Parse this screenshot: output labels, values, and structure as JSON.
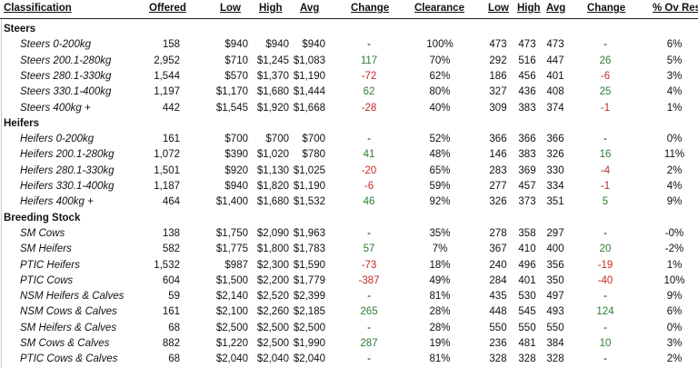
{
  "headers": [
    "Classification",
    "Offered",
    "Low",
    "High",
    "Avg",
    "Change",
    "Clearance",
    "Low",
    "High",
    "Avg",
    "Change",
    "% Ov Res"
  ],
  "sections": [
    {
      "name": "Steers",
      "rows": [
        {
          "c": "Steers 0-200kg",
          "off": "158",
          "low": "$940",
          "high": "$940",
          "avg": "$940",
          "chg": "-",
          "clr": "100%",
          "low2": "473",
          "high2": "473",
          "avg2": "473",
          "chg2": "-",
          "ov": "6%"
        },
        {
          "c": "Steers 200.1-280kg",
          "off": "2,952",
          "low": "$710",
          "high": "$1,245",
          "avg": "$1,083",
          "chg": "117",
          "clr": "70%",
          "low2": "292",
          "high2": "516",
          "avg2": "447",
          "chg2": "26",
          "ov": "5%"
        },
        {
          "c": "Steers 280.1-330kg",
          "off": "1,544",
          "low": "$570",
          "high": "$1,370",
          "avg": "$1,190",
          "chg": "-72",
          "clr": "62%",
          "low2": "186",
          "high2": "456",
          "avg2": "401",
          "chg2": "-6",
          "ov": "3%"
        },
        {
          "c": "Steers 330.1-400kg",
          "off": "1,197",
          "low": "$1,170",
          "high": "$1,680",
          "avg": "$1,444",
          "chg": "62",
          "clr": "80%",
          "low2": "327",
          "high2": "436",
          "avg2": "408",
          "chg2": "25",
          "ov": "4%"
        },
        {
          "c": "Steers 400kg +",
          "off": "442",
          "low": "$1,545",
          "high": "$1,920",
          "avg": "$1,668",
          "chg": "-28",
          "clr": "40%",
          "low2": "309",
          "high2": "383",
          "avg2": "374",
          "chg2": "-1",
          "ov": "1%"
        }
      ]
    },
    {
      "name": "Heifers",
      "rows": [
        {
          "c": "Heifers 0-200kg",
          "off": "161",
          "low": "$700",
          "high": "$700",
          "avg": "$700",
          "chg": "-",
          "clr": "52%",
          "low2": "366",
          "high2": "366",
          "avg2": "366",
          "chg2": "-",
          "ov": "0%"
        },
        {
          "c": "Heifers 200.1-280kg",
          "off": "1,072",
          "low": "$390",
          "high": "$1,020",
          "avg": "$780",
          "chg": "41",
          "clr": "48%",
          "low2": "146",
          "high2": "383",
          "avg2": "326",
          "chg2": "16",
          "ov": "11%"
        },
        {
          "c": "Heifers 280.1-330kg",
          "off": "1,501",
          "low": "$920",
          "high": "$1,130",
          "avg": "$1,025",
          "chg": "-20",
          "clr": "65%",
          "low2": "283",
          "high2": "369",
          "avg2": "330",
          "chg2": "-4",
          "ov": "2%"
        },
        {
          "c": "Heifers 330.1-400kg",
          "off": "1,187",
          "low": "$940",
          "high": "$1,820",
          "avg": "$1,190",
          "chg": "-6",
          "clr": "59%",
          "low2": "277",
          "high2": "457",
          "avg2": "334",
          "chg2": "-1",
          "ov": "4%"
        },
        {
          "c": "Heifers 400kg +",
          "off": "464",
          "low": "$1,400",
          "high": "$1,680",
          "avg": "$1,532",
          "chg": "46",
          "clr": "92%",
          "low2": "326",
          "high2": "373",
          "avg2": "351",
          "chg2": "5",
          "ov": "9%"
        }
      ]
    },
    {
      "name": "Breeding Stock",
      "rows": [
        {
          "c": "SM Cows",
          "off": "138",
          "low": "$1,750",
          "high": "$2,090",
          "avg": "$1,963",
          "chg": "-",
          "clr": "35%",
          "low2": "278",
          "high2": "358",
          "avg2": "297",
          "chg2": "-",
          "ov": "-0%"
        },
        {
          "c": "SM Heifers",
          "off": "582",
          "low": "$1,775",
          "high": "$1,800",
          "avg": "$1,783",
          "chg": "57",
          "clr": "7%",
          "low2": "367",
          "high2": "410",
          "avg2": "400",
          "chg2": "20",
          "ov": "-2%"
        },
        {
          "c": "PTIC Heifers",
          "off": "1,532",
          "low": "$987",
          "high": "$2,300",
          "avg": "$1,590",
          "chg": "-73",
          "clr": "18%",
          "low2": "240",
          "high2": "496",
          "avg2": "356",
          "chg2": "-19",
          "ov": "1%"
        },
        {
          "c": "PTIC Cows",
          "off": "604",
          "low": "$1,500",
          "high": "$2,200",
          "avg": "$1,779",
          "chg": "-387",
          "clr": "49%",
          "low2": "284",
          "high2": "401",
          "avg2": "350",
          "chg2": "-40",
          "ov": "10%"
        },
        {
          "c": "NSM Heifers & Calves",
          "off": "59",
          "low": "$2,140",
          "high": "$2,520",
          "avg": "$2,399",
          "chg": "-",
          "clr": "81%",
          "low2": "435",
          "high2": "530",
          "avg2": "497",
          "chg2": "-",
          "ov": "9%"
        },
        {
          "c": "NSM Cows & Calves",
          "off": "161",
          "low": "$2,100",
          "high": "$2,260",
          "avg": "$2,185",
          "chg": "265",
          "clr": "28%",
          "low2": "448",
          "high2": "545",
          "avg2": "493",
          "chg2": "124",
          "ov": "6%"
        },
        {
          "c": "SM Heifers & Calves",
          "off": "68",
          "low": "$2,500",
          "high": "$2,500",
          "avg": "$2,500",
          "chg": "-",
          "clr": "28%",
          "low2": "550",
          "high2": "550",
          "avg2": "550",
          "chg2": "-",
          "ov": "0%"
        },
        {
          "c": "SM Cows & Calves",
          "off": "882",
          "low": "$1,220",
          "high": "$2,500",
          "avg": "$1,990",
          "chg": "287",
          "clr": "19%",
          "low2": "236",
          "high2": "481",
          "avg2": "384",
          "chg2": "10",
          "ov": "3%"
        },
        {
          "c": "PTIC Cows & Calves",
          "off": "68",
          "low": "$2,040",
          "high": "$2,040",
          "avg": "$2,040",
          "chg": "-",
          "clr": "81%",
          "low2": "328",
          "high2": "328",
          "avg2": "328",
          "chg2": "-",
          "ov": "2%"
        }
      ]
    }
  ]
}
